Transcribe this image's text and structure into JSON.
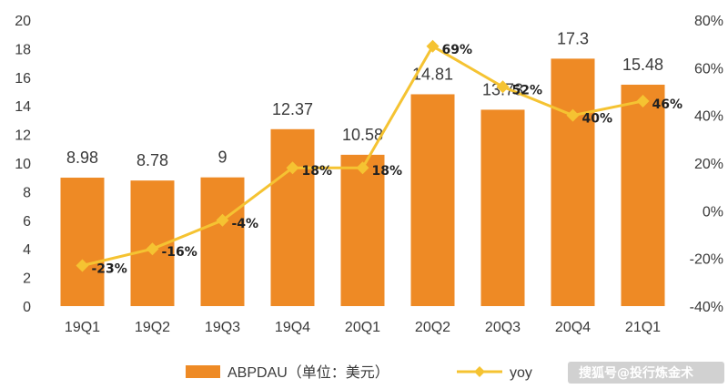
{
  "chart_data": {
    "type": "bar",
    "categories": [
      "19Q1",
      "19Q2",
      "19Q3",
      "19Q4",
      "20Q1",
      "20Q2",
      "20Q3",
      "20Q4",
      "21Q1"
    ],
    "series": [
      {
        "name": "ABPDAU（单位：美元）",
        "type": "bar",
        "axis": "left",
        "values": [
          8.98,
          8.78,
          9,
          12.37,
          10.58,
          14.81,
          13.73,
          17.3,
          15.48
        ],
        "labels": [
          "8.98",
          "8.78",
          "9",
          "12.37",
          "10.58",
          "14.81",
          "13.73",
          "17.3",
          "15.48"
        ]
      },
      {
        "name": "yoy",
        "type": "line",
        "axis": "right",
        "values": [
          -23,
          -16,
          -4,
          18,
          18,
          69,
          52,
          40,
          46
        ],
        "labels": [
          "-23%",
          "-16%",
          "-4%",
          "18%",
          "18%",
          "69%",
          "52%",
          "40%",
          "46%"
        ]
      }
    ],
    "left_axis": {
      "ylim": [
        0,
        20
      ],
      "ticks": [
        "0",
        "2",
        "4",
        "6",
        "8",
        "10",
        "12",
        "14",
        "16",
        "18",
        "20"
      ]
    },
    "right_axis": {
      "ylim": [
        -40,
        80
      ],
      "ticks": [
        "-40%",
        "-20%",
        "0%",
        "20%",
        "40%",
        "60%",
        "80%"
      ]
    },
    "legend": "bottom",
    "grid": false,
    "colors": {
      "bar": "#ee8a25",
      "line": "#f5c332",
      "text": "#3a3a3a"
    }
  },
  "watermark": "搜狐号@投行炼金术"
}
